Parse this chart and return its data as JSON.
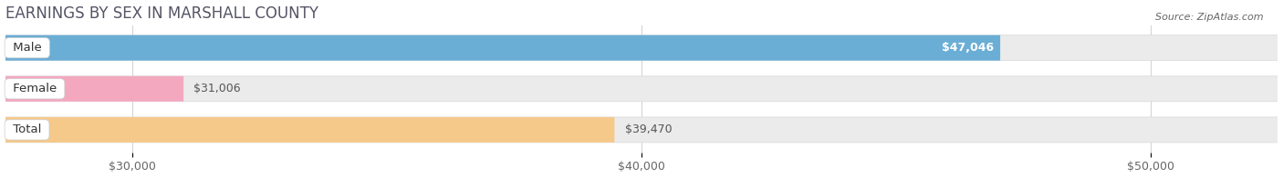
{
  "title": "EARNINGS BY SEX IN MARSHALL COUNTY",
  "source": "Source: ZipAtlas.com",
  "categories": [
    "Male",
    "Female",
    "Total"
  ],
  "values": [
    47046,
    31006,
    39470
  ],
  "bar_colors": [
    "#6aaed6",
    "#f4a8c0",
    "#f5c98a"
  ],
  "value_labels": [
    "$47,046",
    "$31,006",
    "$39,470"
  ],
  "value_inside": [
    true,
    false,
    false
  ],
  "xlim_min": 27500,
  "xlim_max": 52500,
  "xticks": [
    30000,
    40000,
    50000
  ],
  "xtick_labels": [
    "$30,000",
    "$40,000",
    "$50,000"
  ],
  "background_color": "#ffffff",
  "bar_bg_color": "#ebebeb",
  "bar_bg_stroke": "#d8d8d8",
  "title_fontsize": 12,
  "tick_fontsize": 9,
  "label_fontsize": 9.5,
  "value_fontsize": 9
}
